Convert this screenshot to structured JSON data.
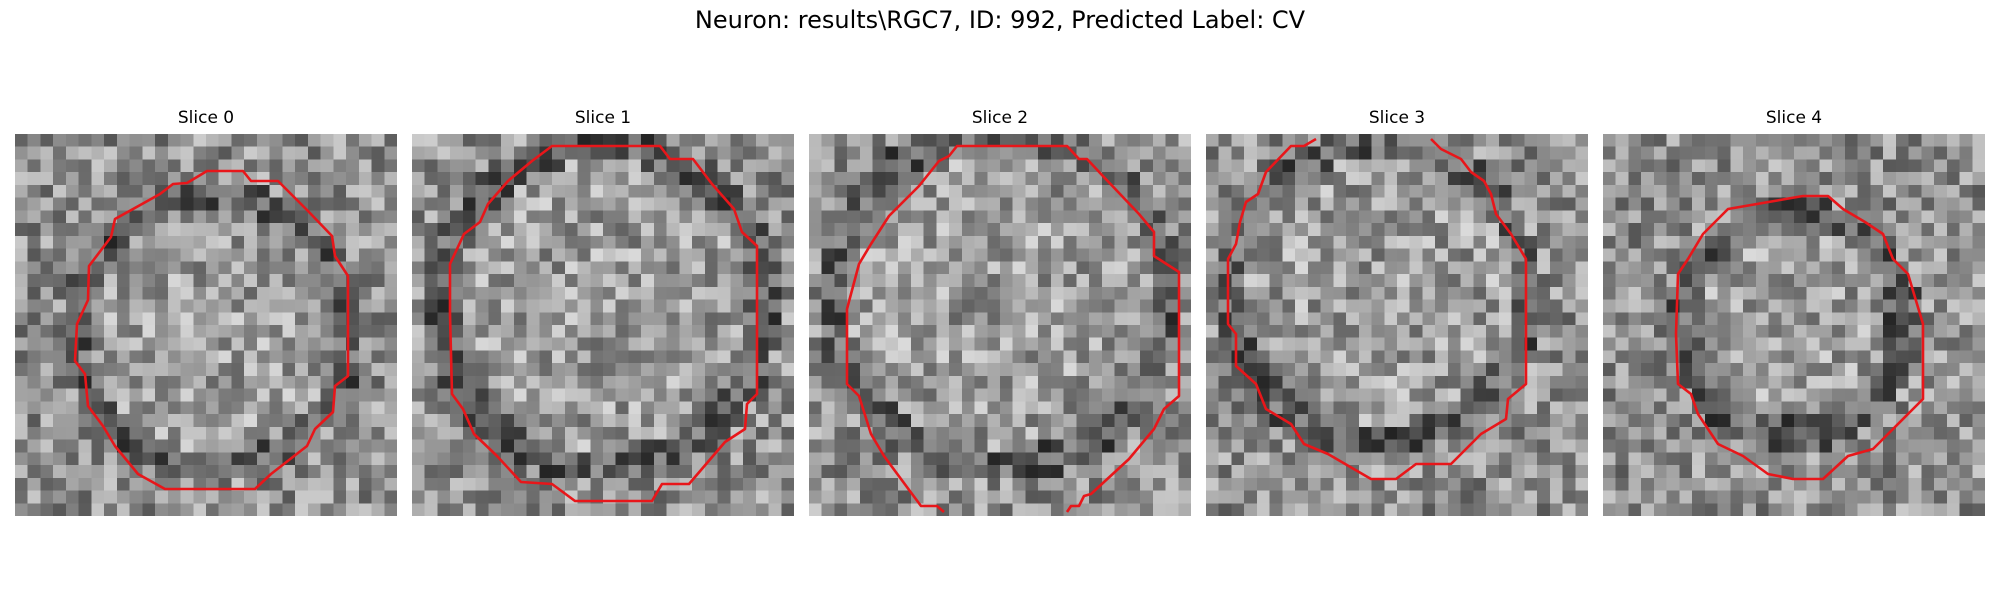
{
  "figure": {
    "title": "Neuron: results\\RGC7, ID: 992, Predicted Label: CV"
  },
  "slices": [
    {
      "label": "Slice 0"
    },
    {
      "label": "Slice 1"
    },
    {
      "label": "Slice 2"
    },
    {
      "label": "Slice 3"
    },
    {
      "label": "Slice 4"
    }
  ],
  "colors": {
    "contour": "#e8161a",
    "background": "#ffffff"
  }
}
